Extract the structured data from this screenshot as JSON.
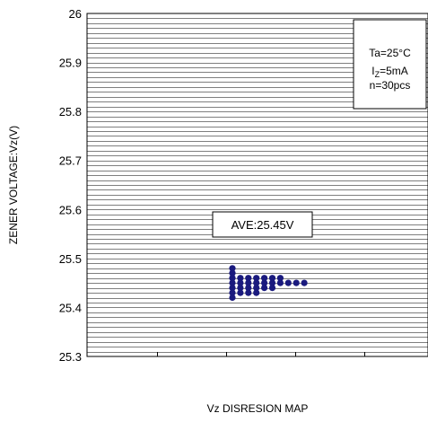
{
  "chart_data": {
    "type": "scatter",
    "title": "",
    "xlabel": "Vz DISRESION MAP",
    "ylabel": "ZENER VOLTAGE:Vz(V)",
    "ylim": [
      25.3,
      26.0
    ],
    "yticks": [
      "25.3",
      "25.4",
      "25.5",
      "25.6",
      "25.7",
      "25.8",
      "25.9",
      "26"
    ],
    "grid_step": 0.01,
    "grid": true,
    "legend": "none",
    "conditions": {
      "ta": "Ta=25°C",
      "iz_prefix": "I",
      "iz_sub": "Z",
      "iz_suffix": "=5mA",
      "n": "n=30pcs"
    },
    "average_label": "AVE:25.45V",
    "dot_color": "#1a1a7e",
    "series": [
      {
        "columns": [
          {
            "x": 1,
            "values": [
              25.42,
              25.43,
              25.44,
              25.45,
              25.46,
              25.47,
              25.48
            ]
          },
          {
            "x": 2,
            "values": [
              25.43,
              25.44,
              25.45,
              25.46
            ]
          },
          {
            "x": 3,
            "values": [
              25.43,
              25.44,
              25.45,
              25.46
            ]
          },
          {
            "x": 4,
            "values": [
              25.43,
              25.44,
              25.45,
              25.46
            ]
          },
          {
            "x": 5,
            "values": [
              25.44,
              25.45,
              25.46
            ]
          },
          {
            "x": 6,
            "values": [
              25.44,
              25.45,
              25.46
            ]
          },
          {
            "x": 7,
            "values": [
              25.45,
              25.46
            ]
          },
          {
            "x": 8,
            "values": [
              25.45
            ]
          },
          {
            "x": 9,
            "values": [
              25.45
            ]
          },
          {
            "x": 10,
            "values": [
              25.45
            ]
          }
        ]
      }
    ]
  }
}
